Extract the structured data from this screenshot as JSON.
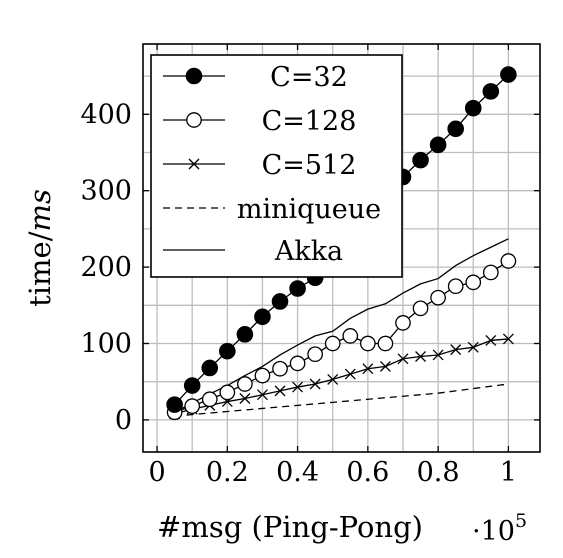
{
  "chart_data": {
    "type": "line",
    "title": "",
    "xlabel": "#msg (Ping-Pong)",
    "ylabel_main": "time/",
    "ylabel_unit": "ms",
    "x_multiplier_base": "·10",
    "x_multiplier_exp": "5",
    "xlim": [
      -0.04,
      1.09
    ],
    "ylim": [
      -42,
      492
    ],
    "xticks": [
      0,
      0.2,
      0.4,
      0.6,
      0.8,
      1
    ],
    "xtick_labels": [
      "0",
      "0.2",
      "0.4",
      "0.6",
      "0.8",
      "1"
    ],
    "yticks": [
      0,
      100,
      200,
      300,
      400
    ],
    "ytick_labels": [
      "0",
      "100",
      "200",
      "300",
      "400"
    ],
    "x_grid": [
      0,
      0.1,
      0.2,
      0.3,
      0.4,
      0.5,
      0.6,
      0.7,
      0.8,
      0.9,
      1.0
    ],
    "y_grid": [
      0,
      50,
      100,
      150,
      200,
      250,
      300,
      350,
      400,
      450
    ],
    "grid": true,
    "legend_position": "top-left",
    "series": [
      {
        "name": "C=32",
        "marker": "filled-circle",
        "x": [
          0.05,
          0.1,
          0.15,
          0.2,
          0.25,
          0.3,
          0.35,
          0.4,
          0.45,
          0.5,
          0.55,
          0.6,
          0.65,
          0.7,
          0.75,
          0.8,
          0.85,
          0.9,
          0.95,
          1.0
        ],
        "y": [
          20,
          45,
          68,
          90,
          112,
          135,
          155,
          172,
          186,
          207,
          230,
          252,
          275,
          318,
          340,
          360,
          381,
          408,
          430,
          452
        ]
      },
      {
        "name": "C=128",
        "marker": "open-circle",
        "x": [
          0.05,
          0.1,
          0.15,
          0.2,
          0.25,
          0.3,
          0.35,
          0.4,
          0.45,
          0.5,
          0.55,
          0.6,
          0.65,
          0.7,
          0.75,
          0.8,
          0.85,
          0.9,
          0.95,
          1.0
        ],
        "y": [
          10,
          18,
          27,
          36,
          47,
          58,
          67,
          74,
          86,
          100,
          110,
          100,
          100,
          127,
          146,
          160,
          175,
          180,
          193,
          208
        ]
      },
      {
        "name": "C=512",
        "marker": "cross",
        "x": [
          0.05,
          0.1,
          0.15,
          0.2,
          0.25,
          0.3,
          0.35,
          0.4,
          0.45,
          0.5,
          0.55,
          0.6,
          0.65,
          0.7,
          0.75,
          0.8,
          0.85,
          0.9,
          0.95,
          1.0
        ],
        "y": [
          8,
          14,
          19,
          24,
          28,
          33,
          38,
          43,
          47,
          53,
          60,
          67,
          70,
          80,
          83,
          85,
          92,
          95,
          104,
          106
        ]
      },
      {
        "name": "miniqueue",
        "marker": "none",
        "dash": "dashed",
        "x": [
          0.05,
          0.1,
          0.15,
          0.2,
          0.25,
          0.3,
          0.35,
          0.4,
          0.45,
          0.5,
          0.55,
          0.6,
          0.65,
          0.7,
          0.75,
          0.8,
          0.85,
          0.9,
          0.95,
          1.0
        ],
        "y": [
          5,
          7,
          9,
          11,
          13,
          15,
          17,
          19,
          21,
          23,
          25,
          27,
          29,
          31,
          33,
          35,
          38,
          41,
          44,
          47
        ]
      },
      {
        "name": "Akka",
        "marker": "none",
        "dash": "solid",
        "x": [
          0.05,
          0.1,
          0.15,
          0.2,
          0.25,
          0.3,
          0.35,
          0.4,
          0.45,
          0.5,
          0.55,
          0.6,
          0.65,
          0.7,
          0.75,
          0.8,
          0.85,
          0.9,
          0.95,
          1.0
        ],
        "y": [
          10,
          22,
          34,
          45,
          58,
          70,
          85,
          98,
          110,
          116,
          133,
          145,
          152,
          166,
          178,
          185,
          202,
          215,
          226,
          237
        ]
      }
    ]
  }
}
